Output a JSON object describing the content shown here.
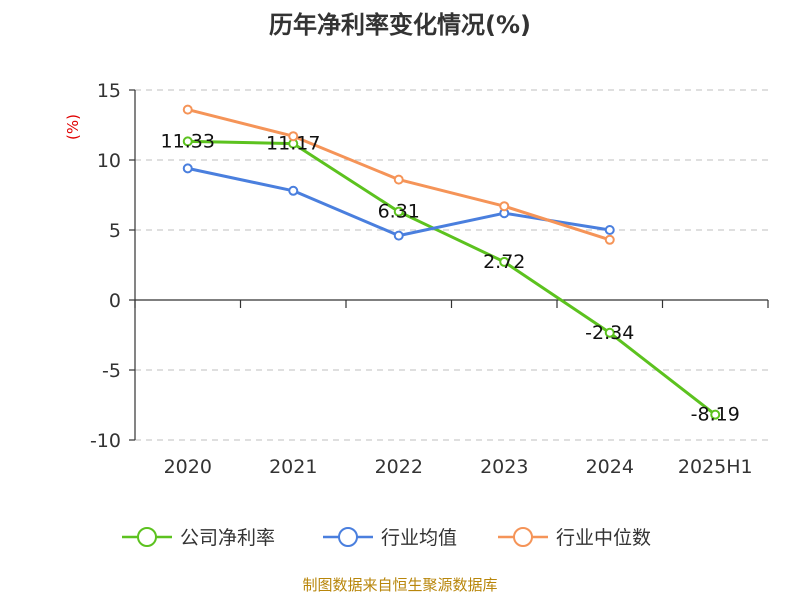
{
  "chart_data": {
    "type": "line",
    "title": "历年净利率变化情况(%)",
    "ylabel": "(%)",
    "xlabel": "",
    "categories": [
      "2020",
      "2021",
      "2022",
      "2023",
      "2024",
      "2025H1"
    ],
    "ylim": [
      -10,
      15
    ],
    "yticks": [
      15,
      10,
      5,
      0,
      -5,
      -10
    ],
    "grid": true,
    "legend_position": "bottom",
    "series": [
      {
        "name": "公司净利率",
        "color": "#5cc21f",
        "labeled": true,
        "values": [
          11.33,
          11.17,
          6.31,
          2.72,
          -2.34,
          -8.19
        ]
      },
      {
        "name": "行业均值",
        "color": "#4a7fde",
        "labeled": false,
        "values": [
          9.4,
          7.8,
          4.6,
          6.2,
          5.0,
          null
        ]
      },
      {
        "name": "行业中位数",
        "color": "#f59458",
        "labeled": false,
        "values": [
          13.6,
          11.7,
          8.6,
          6.7,
          4.3,
          null
        ]
      }
    ],
    "source": "制图数据来自恒生聚源数据库"
  }
}
